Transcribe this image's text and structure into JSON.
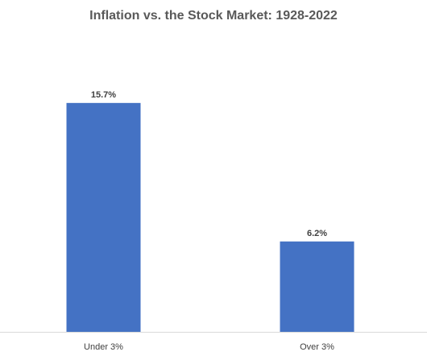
{
  "chart_data": {
    "type": "bar",
    "title": "Inflation vs. the Stock Market: 1928-2022",
    "xlabel": "",
    "ylabel": "",
    "categories": [
      "Under 3%",
      "Over 3%"
    ],
    "values": [
      15.7,
      6.2
    ],
    "data_labels": [
      "15.7%",
      "6.2%"
    ],
    "ylim": [
      0,
      20
    ],
    "grid": false,
    "legend": "none",
    "bar_color": "#4472C4",
    "axis_color": "#D9D9D9"
  }
}
